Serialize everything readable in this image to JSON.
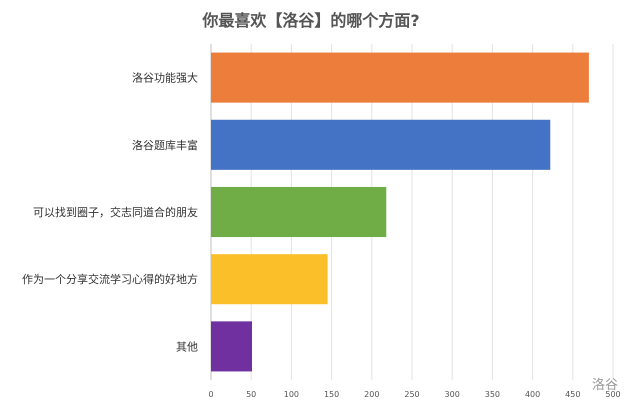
{
  "chart_data": {
    "type": "bar",
    "orientation": "horizontal",
    "title": "你最喜欢【洛谷】的哪个方面?",
    "categories": [
      "洛谷功能强大",
      "洛谷题库丰富",
      "可以找到圈子，交志同道合的朋友",
      "作为一个分享交流学习心得的好地方",
      "其他"
    ],
    "values": [
      470,
      422,
      218,
      145,
      51
    ],
    "colors": [
      "#ED7D3A",
      "#4472C4",
      "#70AD47",
      "#FBBF2A",
      "#7030A0"
    ],
    "xlim": [
      0,
      500
    ],
    "xticks": [
      "0",
      "50",
      "100",
      "150",
      "200",
      "250",
      "300",
      "350",
      "400",
      "450",
      "500"
    ],
    "grid": true,
    "legend": "none"
  },
  "watermark": "洛谷"
}
